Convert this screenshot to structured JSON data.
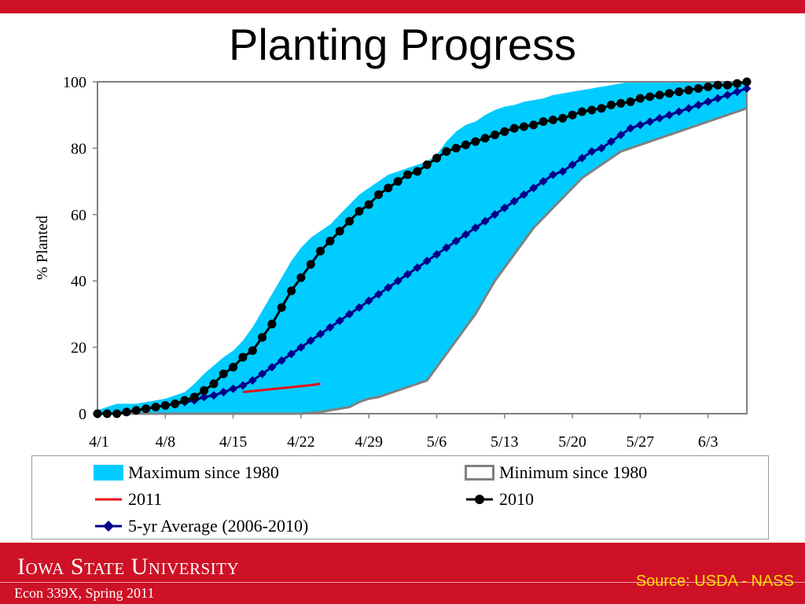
{
  "slide": {
    "title": "Planting Progress",
    "footer_university": "Iowa State University",
    "footer_course": "Econ 339X, Spring 2011",
    "footer_source": "Source: USDA - NASS",
    "accent_red": "#ce1126",
    "source_color": "#ffde00"
  },
  "chart_data": {
    "type": "area",
    "title": "",
    "xlabel": "",
    "ylabel": "% Planted",
    "ylim": [
      0,
      100
    ],
    "yticks": [
      "0",
      "20",
      "40",
      "60",
      "80",
      "100"
    ],
    "x_ticks": [
      "4/1",
      "4/8",
      "4/15",
      "4/22",
      "4/29",
      "5/6",
      "5/13",
      "5/20",
      "5/27",
      "6/3"
    ],
    "x_range_days": [
      0,
      67
    ],
    "legend": [
      "Maximum since 1980",
      "Minimum since 1980",
      "2011",
      "2010",
      "5-yr Average (2006-2010)"
    ],
    "legend_position": "bottom",
    "series": [
      {
        "name": "Maximum since 1980",
        "style": "area",
        "color": "#00ccff",
        "x": [
          0,
          1,
          2,
          3,
          4,
          5,
          6,
          7,
          8,
          9,
          10,
          11,
          12,
          13,
          14,
          15,
          16,
          17,
          18,
          19,
          20,
          21,
          22,
          23,
          24,
          25,
          26,
          27,
          28,
          29,
          30,
          31,
          32,
          33,
          34,
          35,
          36,
          37,
          38,
          39,
          40,
          41,
          42,
          43,
          44,
          45,
          46,
          47,
          48,
          49,
          50,
          51,
          52,
          53,
          54,
          55,
          56,
          57,
          58,
          59,
          60,
          61,
          62,
          63,
          64,
          65,
          66,
          67
        ],
        "values": [
          1,
          2,
          3,
          3,
          3,
          3.5,
          4,
          4.5,
          5.5,
          6.5,
          9,
          12,
          14.5,
          17,
          19,
          22,
          26,
          31,
          36,
          41,
          46,
          50,
          53,
          55,
          57,
          60,
          63,
          66,
          68,
          70,
          72,
          73,
          74,
          75,
          76,
          78,
          82,
          85,
          87,
          88,
          90,
          91.5,
          92.5,
          93,
          94,
          94.5,
          95,
          96,
          96.5,
          97,
          97.5,
          98,
          98.5,
          99,
          99.5,
          100,
          100,
          100,
          100,
          100,
          100,
          100,
          100,
          100,
          100,
          100,
          100,
          100
        ]
      },
      {
        "name": "Minimum since 1980",
        "style": "line",
        "color": "#808080",
        "x": [
          0,
          5,
          10,
          15,
          17,
          19,
          21,
          22,
          23,
          24,
          25,
          26,
          27,
          28,
          29,
          30,
          31,
          32,
          33,
          34,
          35,
          36,
          37,
          38,
          39,
          40,
          41,
          42,
          43,
          44,
          45,
          46,
          47,
          48,
          49,
          50,
          51,
          52,
          53,
          54,
          55,
          56,
          57,
          58,
          59,
          60,
          61,
          62,
          63,
          64,
          65,
          66,
          67
        ],
        "values": [
          0,
          0,
          0,
          0,
          0,
          0,
          0,
          0.2,
          0.5,
          1,
          1.5,
          2,
          3.5,
          4.5,
          5,
          6,
          7,
          8,
          9,
          10,
          14,
          18,
          22,
          26,
          30,
          35,
          40,
          44,
          48,
          52,
          56,
          59,
          62,
          65,
          68,
          71,
          73,
          75,
          77,
          79,
          80,
          81,
          82,
          83,
          84,
          85,
          86,
          87,
          88,
          89,
          90,
          91,
          92
        ]
      },
      {
        "name": "2011",
        "style": "line",
        "color": "#e8101a",
        "x": [
          15,
          16,
          17,
          18,
          19,
          20,
          21,
          22,
          23
        ],
        "values": [
          6.5,
          6.8,
          7.1,
          7.4,
          7.7,
          8.0,
          8.3,
          8.6,
          9.0
        ]
      },
      {
        "name": "2010",
        "style": "line-marker",
        "color": "#000000",
        "marker": "circle",
        "x": [
          0,
          1,
          2,
          3,
          4,
          5,
          6,
          7,
          8,
          9,
          10,
          11,
          12,
          13,
          14,
          15,
          16,
          17,
          18,
          19,
          20,
          21,
          22,
          23,
          24,
          25,
          26,
          27,
          28,
          29,
          30,
          31,
          32,
          33,
          34,
          35,
          36,
          37,
          38,
          39,
          40,
          41,
          42,
          43,
          44,
          45,
          46,
          47,
          48,
          49,
          50,
          51,
          52,
          53,
          54,
          55,
          56,
          57,
          58,
          59,
          60,
          61,
          62,
          63,
          64,
          65,
          66,
          67
        ],
        "values": [
          0,
          0,
          0,
          0.5,
          1,
          1.5,
          2,
          2.5,
          3,
          4,
          5,
          7,
          9,
          12,
          14,
          17,
          19,
          23,
          27,
          32,
          37,
          41,
          45,
          49,
          52,
          55,
          58,
          61,
          63,
          66,
          68,
          70,
          72,
          73,
          75,
          77,
          79,
          80,
          81,
          82,
          83,
          84,
          85,
          86,
          86.5,
          87,
          88,
          88.5,
          89,
          90,
          91,
          91.5,
          92,
          93,
          93.5,
          94,
          95,
          95.5,
          96,
          96.5,
          97,
          97.5,
          98,
          98.5,
          99,
          99,
          99.5,
          100
        ]
      },
      {
        "name": "5-yr Average (2006-2010)",
        "style": "line-marker",
        "color": "#00008b",
        "marker": "diamond",
        "x": [
          0,
          1,
          2,
          3,
          4,
          5,
          6,
          7,
          8,
          9,
          10,
          11,
          12,
          13,
          14,
          15,
          16,
          17,
          18,
          19,
          20,
          21,
          22,
          23,
          24,
          25,
          26,
          27,
          28,
          29,
          30,
          31,
          32,
          33,
          34,
          35,
          36,
          37,
          38,
          39,
          40,
          41,
          42,
          43,
          44,
          45,
          46,
          47,
          48,
          49,
          50,
          51,
          52,
          53,
          54,
          55,
          56,
          57,
          58,
          59,
          60,
          61,
          62,
          63,
          64,
          65,
          66,
          67
        ],
        "values": [
          0,
          0,
          0,
          0.5,
          1,
          1.5,
          2,
          2.5,
          3,
          3.5,
          4,
          5,
          5.5,
          6.5,
          7.5,
          8.5,
          10,
          12,
          14,
          16,
          18,
          20,
          22,
          24,
          26,
          28,
          30,
          32,
          34,
          36,
          38,
          40,
          42,
          44,
          46,
          48,
          50,
          52,
          54,
          56,
          58,
          60,
          62,
          64,
          66,
          68,
          70,
          72,
          73,
          75,
          77,
          79,
          80,
          82,
          84,
          86,
          87,
          88,
          89,
          90,
          91,
          92,
          93,
          94,
          95,
          96,
          97,
          98
        ]
      }
    ]
  }
}
